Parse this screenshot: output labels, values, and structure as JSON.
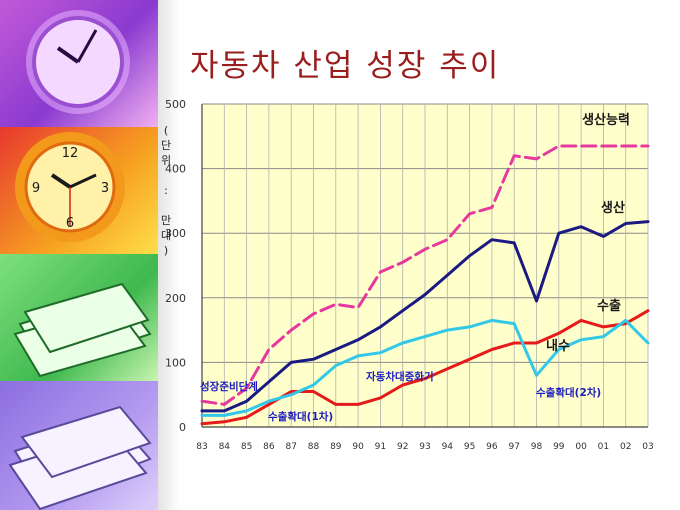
{
  "slide": {
    "title": "자동차 산업 성장 추이"
  },
  "colors": {
    "capacity": "#e6399e",
    "production": "#1a1a82",
    "domestic": "#33c7e8",
    "export": "#e51b1b",
    "plot_bg": "#ffffcc",
    "label_blue": "#1c1cc0",
    "title": "#9b1e1e"
  },
  "chart_data": {
    "type": "line",
    "title": "자동차 산업 성장 추이",
    "ylabel": "(단위 : 만대)",
    "xlabel": "",
    "ylim": [
      0,
      500
    ],
    "y_ticks": [
      "0",
      "100",
      "200",
      "300",
      "400",
      "500"
    ],
    "x_tick_labels": [
      "83",
      "84",
      "85",
      "86",
      "87",
      "88",
      "89",
      "90",
      "91",
      "92",
      "93",
      "94",
      "95",
      "96",
      "97",
      "98",
      "99",
      "00",
      "01",
      "02",
      "03"
    ],
    "x": [
      83,
      84,
      85,
      86,
      87,
      88,
      89,
      90,
      91,
      92,
      93,
      94,
      95,
      96,
      97,
      98,
      99,
      100,
      101,
      102,
      103
    ],
    "grid": true,
    "series": [
      {
        "name": "생산능력",
        "style": "dashed",
        "color_key": "capacity",
        "values": [
          40,
          35,
          60,
          120,
          150,
          175,
          190,
          185,
          240,
          255,
          275,
          290,
          330,
          340,
          420,
          415,
          435,
          435,
          435,
          435,
          435
        ]
      },
      {
        "name": "생산",
        "style": "solid",
        "color_key": "production",
        "values": [
          25,
          25,
          40,
          70,
          100,
          105,
          120,
          135,
          155,
          180,
          205,
          235,
          265,
          290,
          285,
          195,
          300,
          310,
          295,
          315,
          318
        ]
      },
      {
        "name": "수출",
        "style": "solid",
        "color_key": "export",
        "values": [
          5,
          8,
          15,
          35,
          55,
          55,
          35,
          35,
          45,
          65,
          75,
          90,
          105,
          120,
          130,
          130,
          145,
          165,
          155,
          160,
          180
        ]
      },
      {
        "name": "내수",
        "style": "solid",
        "color_key": "domestic",
        "values": [
          18,
          18,
          25,
          40,
          50,
          65,
          95,
          110,
          115,
          130,
          140,
          150,
          155,
          165,
          160,
          80,
          120,
          135,
          140,
          165,
          130
        ]
      }
    ],
    "annotations": [
      {
        "text": "생산능력",
        "color_key": "production"
      },
      {
        "text": "생산",
        "color_key": "production"
      },
      {
        "text": "수출",
        "color_key": "production"
      },
      {
        "text": "내수",
        "color_key": "production"
      },
      {
        "text": "성장준비단계",
        "color_key": "label_blue"
      },
      {
        "text": "수출확대(1차)",
        "color_key": "label_blue"
      },
      {
        "text": "자동차대중화기",
        "color_key": "label_blue"
      },
      {
        "text": "수출확대(2차)",
        "color_key": "label_blue"
      }
    ]
  }
}
